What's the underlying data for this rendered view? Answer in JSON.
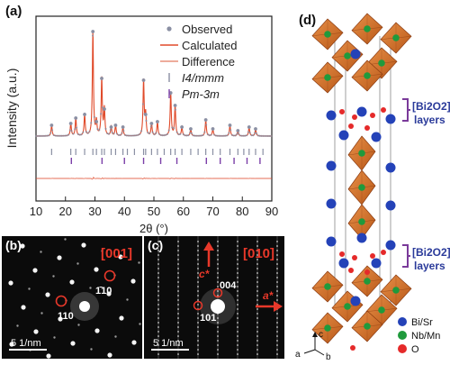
{
  "panels": {
    "a": {
      "label": "(a)",
      "y_label": "Intensity (a.u.)",
      "x_label": "2θ (°)",
      "x_ticks": [
        "10",
        "20",
        "30",
        "40",
        "50",
        "60",
        "70",
        "80",
        "90"
      ],
      "legend": {
        "observed": "Observed",
        "calculated": "Calculated",
        "difference": "Difference",
        "phase1": "I4/mmm",
        "phase2": "Pm-3m"
      },
      "colors": {
        "observed": "#8a8fa3",
        "calculated": "#e04a2a",
        "difference": "#e04a2a",
        "phase1": "#8a8fa3",
        "phase2": "#7b3fa8"
      }
    },
    "b": {
      "label": "(b)",
      "zone": "[001]",
      "spot1": "1̄10",
      "spot2": "110",
      "scale": "5 1/nm"
    },
    "c": {
      "label": "(c)",
      "zone": "[010]",
      "axis_c": "c*",
      "axis_a": "a*",
      "spot1": "004",
      "spot2": "101",
      "scale": "5 1/nm"
    },
    "d": {
      "label": "(d)",
      "layer_label_line1": "[Bi2O2]",
      "layer_label_line2": "layers",
      "legend": [
        {
          "label": "Bi/Sr",
          "color": "#2442b8"
        },
        {
          "label": "Nb/Mn",
          "color": "#1f9a3c"
        },
        {
          "label": "O",
          "color": "#e52a2a"
        }
      ],
      "axes": {
        "a": "a",
        "b": "b",
        "c": "c"
      }
    }
  },
  "chart_data": {
    "type": "line",
    "title": "",
    "xlabel": "2θ (°)",
    "ylabel": "Intensity (a.u.)",
    "xlim": [
      10,
      90
    ],
    "grid": false,
    "legend_position": "top-right",
    "series": [
      {
        "name": "Observed",
        "peaks": [
          {
            "x": 15.3,
            "y": 6
          },
          {
            "x": 21.8,
            "y": 7
          },
          {
            "x": 23.5,
            "y": 10
          },
          {
            "x": 26.5,
            "y": 12
          },
          {
            "x": 29.3,
            "y": 58
          },
          {
            "x": 30.5,
            "y": 8
          },
          {
            "x": 32.3,
            "y": 32
          },
          {
            "x": 33.2,
            "y": 15
          },
          {
            "x": 35.5,
            "y": 5
          },
          {
            "x": 37.0,
            "y": 6
          },
          {
            "x": 39.5,
            "y": 5
          },
          {
            "x": 46.5,
            "y": 31
          },
          {
            "x": 47.2,
            "y": 12
          },
          {
            "x": 49.2,
            "y": 7
          },
          {
            "x": 51.2,
            "y": 8
          },
          {
            "x": 55.7,
            "y": 24
          },
          {
            "x": 57.2,
            "y": 17
          },
          {
            "x": 59.5,
            "y": 5
          },
          {
            "x": 62.5,
            "y": 4
          },
          {
            "x": 67.6,
            "y": 9
          },
          {
            "x": 70.0,
            "y": 4
          },
          {
            "x": 75.8,
            "y": 6
          },
          {
            "x": 78.5,
            "y": 3
          },
          {
            "x": 82.3,
            "y": 5
          },
          {
            "x": 84.5,
            "y": 4
          }
        ]
      },
      {
        "name": "Calculated"
      },
      {
        "name": "Difference"
      },
      {
        "name": "I4/mmm",
        "ticks": [
          15.3,
          21.8,
          23.5,
          26.5,
          29.3,
          30.5,
          32.3,
          33.2,
          35.5,
          37.0,
          39.5,
          41.0,
          43.4,
          46.5,
          47.2,
          49.2,
          51.2,
          53.5,
          55.7,
          57.2,
          59.5,
          62.5,
          65.0,
          67.6,
          70.0,
          72.5,
          75.8,
          78.5,
          80.5,
          82.3,
          84.5,
          87.0
        ]
      },
      {
        "name": "Pm-3m",
        "ticks": [
          22.0,
          32.4,
          40.0,
          46.5,
          52.3,
          57.8,
          67.8,
          72.5,
          77.2,
          81.6,
          86.0
        ]
      }
    ]
  }
}
